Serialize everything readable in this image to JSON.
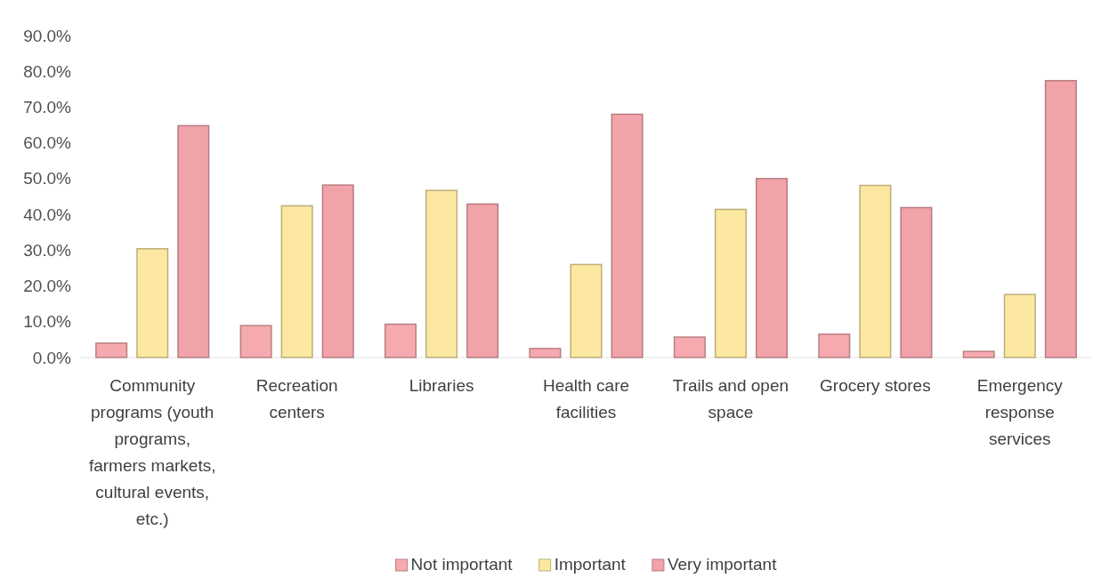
{
  "chart_data": {
    "type": "bar",
    "categories": [
      "Community programs (youth programs, farmers markets, cultural events, etc.)",
      "Recreation centers",
      "Libraries",
      "Health care facilities",
      "Trails and open space",
      "Grocery stores",
      "Emergency response services"
    ],
    "series": [
      {
        "name": "Not important",
        "color": "#f6a9ae",
        "values": [
          4.0,
          8.9,
          9.3,
          2.5,
          5.7,
          6.5,
          1.7
        ]
      },
      {
        "name": "Important",
        "color": "#fce8a0",
        "values": [
          30.4,
          42.4,
          46.7,
          26,
          41.4,
          48.1,
          17.6
        ]
      },
      {
        "name": "Very important",
        "color": "#f2a3aa",
        "values": [
          64.8,
          48.2,
          42.9,
          68,
          50,
          41.9,
          77.4
        ]
      }
    ],
    "ylim": [
      0,
      90
    ],
    "yticks": [
      {
        "value": 0,
        "label": "0.0%"
      },
      {
        "value": 10,
        "label": "10.0%"
      },
      {
        "value": 20,
        "label": "20.0%"
      },
      {
        "value": 30,
        "label": "30.0%"
      },
      {
        "value": 40,
        "label": "40.0%"
      },
      {
        "value": 50,
        "label": "50.0%"
      },
      {
        "value": 60,
        "label": "60.0%"
      },
      {
        "value": 70,
        "label": "70.0%"
      },
      {
        "value": 80,
        "label": "80.0%"
      },
      {
        "value": 90,
        "label": "90.0%"
      }
    ],
    "legend": "bottom"
  }
}
